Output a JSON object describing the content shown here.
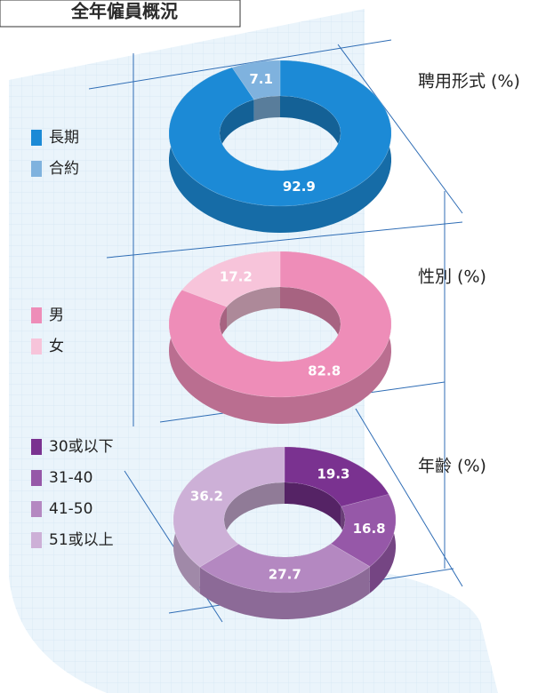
{
  "header": {
    "title": "全年僱員概況"
  },
  "chart_data": [
    {
      "type": "pie",
      "title": "聘用形式 (%)",
      "categories": [
        "長期",
        "合約"
      ],
      "values": [
        92.9,
        7.1
      ],
      "colors": [
        "#1c8ad6",
        "#7fb2de"
      ]
    },
    {
      "type": "pie",
      "title": "性別 (%)",
      "categories": [
        "男",
        "女"
      ],
      "values": [
        82.8,
        17.2
      ],
      "colors": [
        "#ee8db8",
        "#f7c4da"
      ]
    },
    {
      "type": "pie",
      "title": "年齡 (%)",
      "categories": [
        "30或以下",
        "31-40",
        "41-50",
        "51或以上"
      ],
      "values": [
        19.3,
        16.8,
        27.7,
        36.2
      ],
      "colors": [
        "#7a3290",
        "#9658a8",
        "#b488c1",
        "#cdb0d7"
      ]
    }
  ]
}
